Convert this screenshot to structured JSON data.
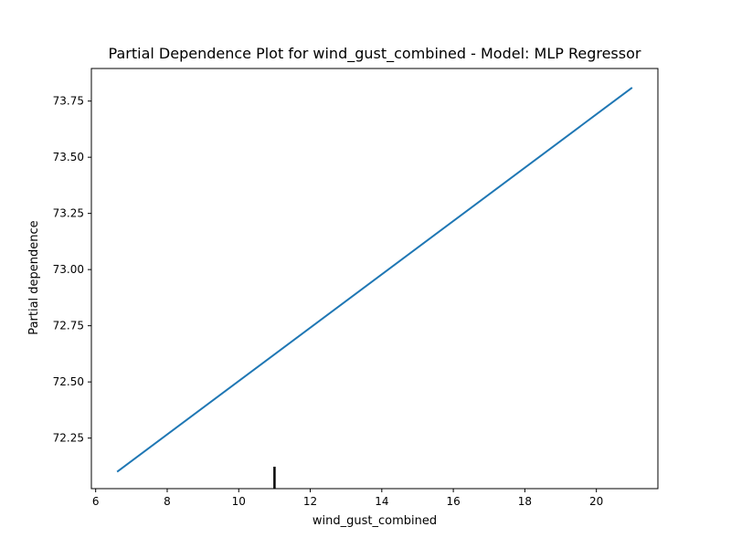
{
  "chart_data": {
    "type": "line",
    "title": "Partial Dependence Plot for wind_gust_combined - Model: MLP Regressor",
    "xlabel": "wind_gust_combined",
    "ylabel": "Partial dependence",
    "xlim": [
      5.88,
      21.72
    ],
    "ylim": [
      72.025,
      73.895
    ],
    "grid": false,
    "x_ticks": [
      6,
      8,
      10,
      12,
      14,
      16,
      18,
      20
    ],
    "x_tick_labels": [
      "6",
      "8",
      "10",
      "12",
      "14",
      "16",
      "18",
      "20"
    ],
    "y_ticks": [
      72.25,
      72.5,
      72.75,
      73.0,
      73.25,
      73.5,
      73.75
    ],
    "y_tick_labels": [
      "72.25",
      "72.50",
      "72.75",
      "73.00",
      "73.25",
      "73.50",
      "73.75"
    ],
    "series": [
      {
        "color": "#1f77b4",
        "x": [
          6.6,
          21.0
        ],
        "y": [
          72.1,
          73.81
        ]
      }
    ],
    "rug": {
      "color": "#000000",
      "x": [
        11.0
      ]
    }
  }
}
